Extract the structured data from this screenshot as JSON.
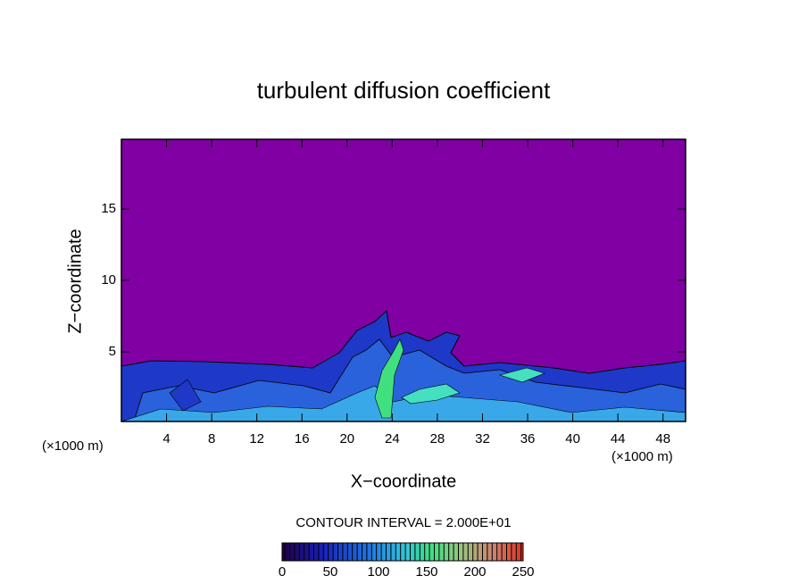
{
  "chart_data": {
    "type": "contour",
    "title": "turbulent diffusion coefficient",
    "xlabel": "X−coordinate",
    "ylabel": "Z−coordinate",
    "x_unit": "(×1000 m)",
    "y_unit": "(×1000 m)",
    "xlim": [
      0,
      50
    ],
    "ylim": [
      0.125,
      19.875
    ],
    "xticks": [
      4,
      8,
      12,
      16,
      20,
      24,
      28,
      32,
      36,
      40,
      44,
      48
    ],
    "yticks": [
      5,
      10,
      15
    ],
    "contour_interval_label": "CONTOUR INTERVAL = 2.000E+01",
    "colorbar": {
      "lim": [
        0,
        250
      ],
      "ticks": [
        0,
        50,
        100,
        150,
        200,
        250
      ]
    }
  }
}
